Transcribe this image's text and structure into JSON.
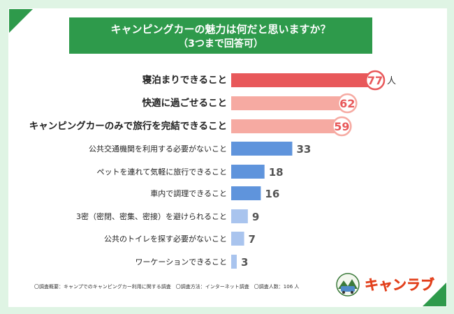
{
  "chart_data": {
    "type": "bar",
    "orientation": "horizontal",
    "title": "キャンピングカーの魅力は何だと思いますか？",
    "subtitle": "（3つまで回答可）",
    "categories": [
      "寝泊まりできること",
      "快適に過ごせること",
      "キャンピングカーのみで旅行を完結できること",
      "公共交通機関を利用する必要がないこと",
      "ペットを連れて気軽に旅行できること",
      "車内で調理できること",
      "3密（密閉、密集、密接）を避けられること",
      "公共のトイレを探す必要がないこと",
      "ワーケーションできること"
    ],
    "values": [
      77,
      62,
      59,
      33,
      18,
      16,
      9,
      7,
      3
    ],
    "value_labels": [
      "77",
      "62",
      "59",
      "33",
      "18",
      "16",
      "9",
      "7",
      "3"
    ],
    "unit": "人",
    "xlim": [
      0,
      80
    ],
    "grid": false,
    "colors": {
      "top": "#e8585a",
      "highlight": "#f6aaa2",
      "blue": "#5f94dc",
      "light_blue": "#a9c4ee",
      "circle_border_top": "#e8585a",
      "circle_border": "#f6aaa2",
      "circle_text_top": "#e8585a",
      "circle_text": "#e8585a"
    }
  },
  "footnote": "〇調査概要：キャンプでのキャンピングカー利用に関する調査　〇調査方法：インターネット調査　〇調査人数：106 人",
  "logo": {
    "text": "キャンラブ",
    "icon": "camper-van-badge-icon"
  }
}
